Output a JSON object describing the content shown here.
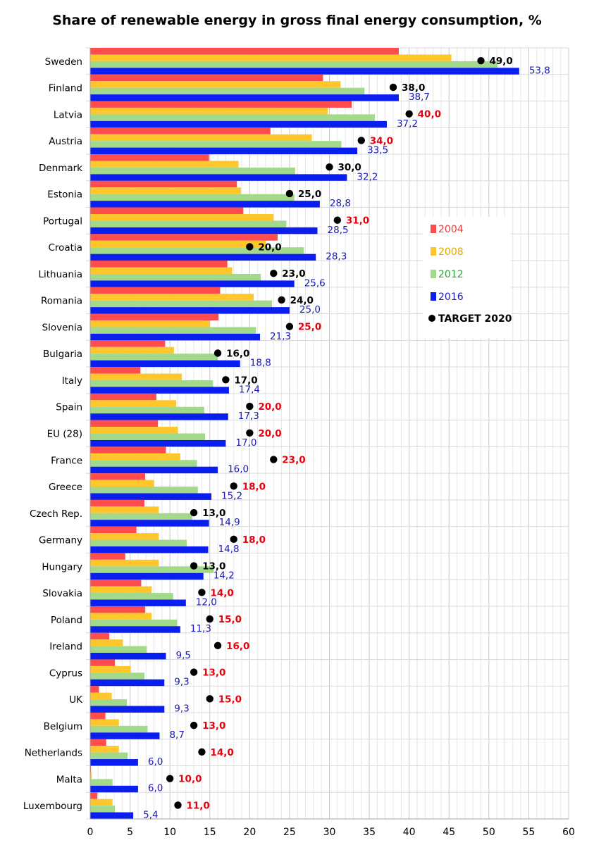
{
  "chart_data": {
    "type": "bar",
    "orientation": "horizontal",
    "title": "Share of renewable energy in gross final energy consumption, %",
    "xlim": [
      0,
      60
    ],
    "x_ticks": [
      0,
      5,
      10,
      15,
      20,
      25,
      30,
      35,
      40,
      45,
      50,
      55,
      60
    ],
    "grid": true,
    "legend_position": "right",
    "categories": [
      "Sweden",
      "Finland",
      "Latvia",
      "Austria",
      "Denmark",
      "Estonia",
      "Portugal",
      "Croatia",
      "Lithuania",
      "Romania",
      "Slovenia",
      "Bulgaria",
      "Italy",
      "Spain",
      "EU (28)",
      "France",
      "Greece",
      "Czech Rep.",
      "Germany",
      "Hungary",
      "Slovakia",
      "Poland",
      "Ireland",
      "Cyprus",
      "UK",
      "Belgium",
      "Netherlands",
      "Malta",
      "Luxembourg"
    ],
    "series": [
      {
        "name": "2004",
        "color": "#ff4d4d",
        "values": [
          38.7,
          29.2,
          32.8,
          22.6,
          14.9,
          18.4,
          19.2,
          23.5,
          17.2,
          16.3,
          16.1,
          9.4,
          6.3,
          8.3,
          8.5,
          9.5,
          6.9,
          6.8,
          5.8,
          4.4,
          6.4,
          6.9,
          2.4,
          3.1,
          1.1,
          1.9,
          2.0,
          0.1,
          0.9
        ]
      },
      {
        "name": "2008",
        "color": "#ffc72c",
        "values": [
          45.3,
          31.4,
          29.8,
          27.8,
          18.6,
          18.9,
          23.0,
          22.0,
          17.8,
          20.5,
          15.0,
          10.5,
          11.5,
          10.8,
          11.0,
          11.3,
          8.0,
          8.6,
          8.6,
          8.6,
          7.7,
          7.7,
          4.1,
          5.1,
          2.7,
          3.6,
          3.6,
          0.2,
          2.8
        ]
      },
      {
        "name": "2012",
        "color": "#a3d98a",
        "values": [
          51.1,
          34.4,
          35.7,
          31.5,
          25.7,
          25.6,
          24.6,
          26.8,
          21.4,
          22.8,
          20.8,
          16.0,
          15.4,
          14.3,
          14.4,
          13.4,
          13.5,
          12.8,
          12.1,
          15.5,
          10.4,
          10.9,
          7.1,
          6.8,
          4.6,
          7.2,
          4.7,
          2.8,
          3.1
        ]
      },
      {
        "name": "2016",
        "color": "#0a1ef0",
        "values": [
          53.8,
          38.7,
          37.2,
          33.5,
          32.2,
          28.8,
          28.5,
          28.3,
          25.6,
          25.0,
          21.3,
          18.8,
          17.4,
          17.3,
          17.0,
          16.0,
          15.2,
          14.9,
          14.8,
          14.2,
          12.0,
          11.3,
          9.5,
          9.3,
          9.3,
          8.7,
          6.0,
          6.0,
          5.4
        ]
      }
    ],
    "value_labels_2016": [
      "53,8",
      "38,7",
      "37,2",
      "33,5",
      "32,2",
      "28,8",
      "28,5",
      "28,3",
      "25,6",
      "25,0",
      "21,3",
      "18,8",
      "17,4",
      "17,3",
      "17,0",
      "16,0",
      "15,2",
      "14,9",
      "14,8",
      "14,2",
      "12,0",
      "11,3",
      "9,5",
      "9,3",
      "9,3",
      "8,7",
      "6,0",
      "6,0",
      "5,4"
    ],
    "target_2020": {
      "name": "TARGET 2020",
      "values": [
        49,
        38,
        40,
        34,
        30,
        25,
        31,
        20,
        23,
        24,
        25,
        16,
        17,
        20,
        20,
        23,
        18,
        13,
        18,
        13,
        14,
        15,
        16,
        13,
        15,
        13,
        14,
        10,
        11
      ],
      "labels": [
        "49,0",
        "38,0",
        "40,0",
        "34,0",
        "30,0",
        "25,0",
        "31,0",
        "20,0",
        "23,0",
        "24,0",
        "25,0",
        "16,0",
        "17,0",
        "20,0",
        "20,0",
        "23,0",
        "18,0",
        "13,0",
        "18,0",
        "13,0",
        "14,0",
        "15,0",
        "16,0",
        "13,0",
        "15,0",
        "13,0",
        "14,0",
        "10,0",
        "11,0"
      ],
      "achieved": [
        true,
        true,
        false,
        false,
        true,
        true,
        false,
        true,
        true,
        true,
        false,
        true,
        true,
        false,
        false,
        false,
        false,
        true,
        false,
        true,
        false,
        false,
        false,
        false,
        false,
        false,
        false,
        false,
        false
      ],
      "achieved_color": "#000000",
      "missed_color": "#e8000d"
    },
    "legend": [
      "2004",
      "2008",
      "2012",
      "2016",
      "TARGET 2020"
    ]
  }
}
